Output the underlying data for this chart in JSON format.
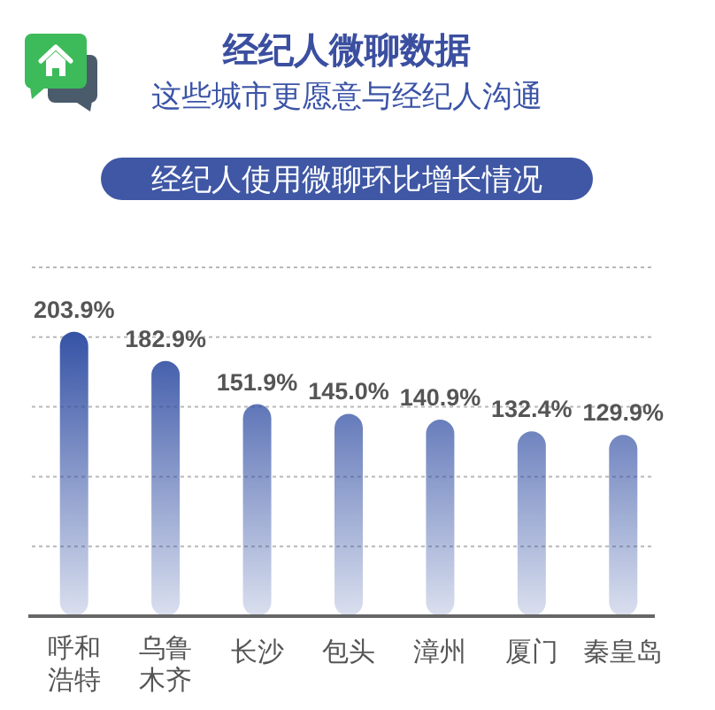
{
  "chart_data": {
    "type": "bar",
    "title": "经纪人微聊数据",
    "subtitle": "这些城市更愿意与经纪人沟通",
    "annotations": [
      "经纪人使用微聊环比增长情况"
    ],
    "categories": [
      "呼和浩特",
      "乌鲁木齐",
      "长沙",
      "包头",
      "漳州",
      "厦门",
      "秦皇岛"
    ],
    "values": [
      203.9,
      182.9,
      151.9,
      145.0,
      140.9,
      132.4,
      129.9
    ],
    "value_labels": [
      "203.9%",
      "182.9%",
      "151.9%",
      "145.0%",
      "140.9%",
      "132.4%",
      "129.9%"
    ],
    "color": "#3552a5",
    "grid": "y",
    "tick_labels": "x"
  }
}
